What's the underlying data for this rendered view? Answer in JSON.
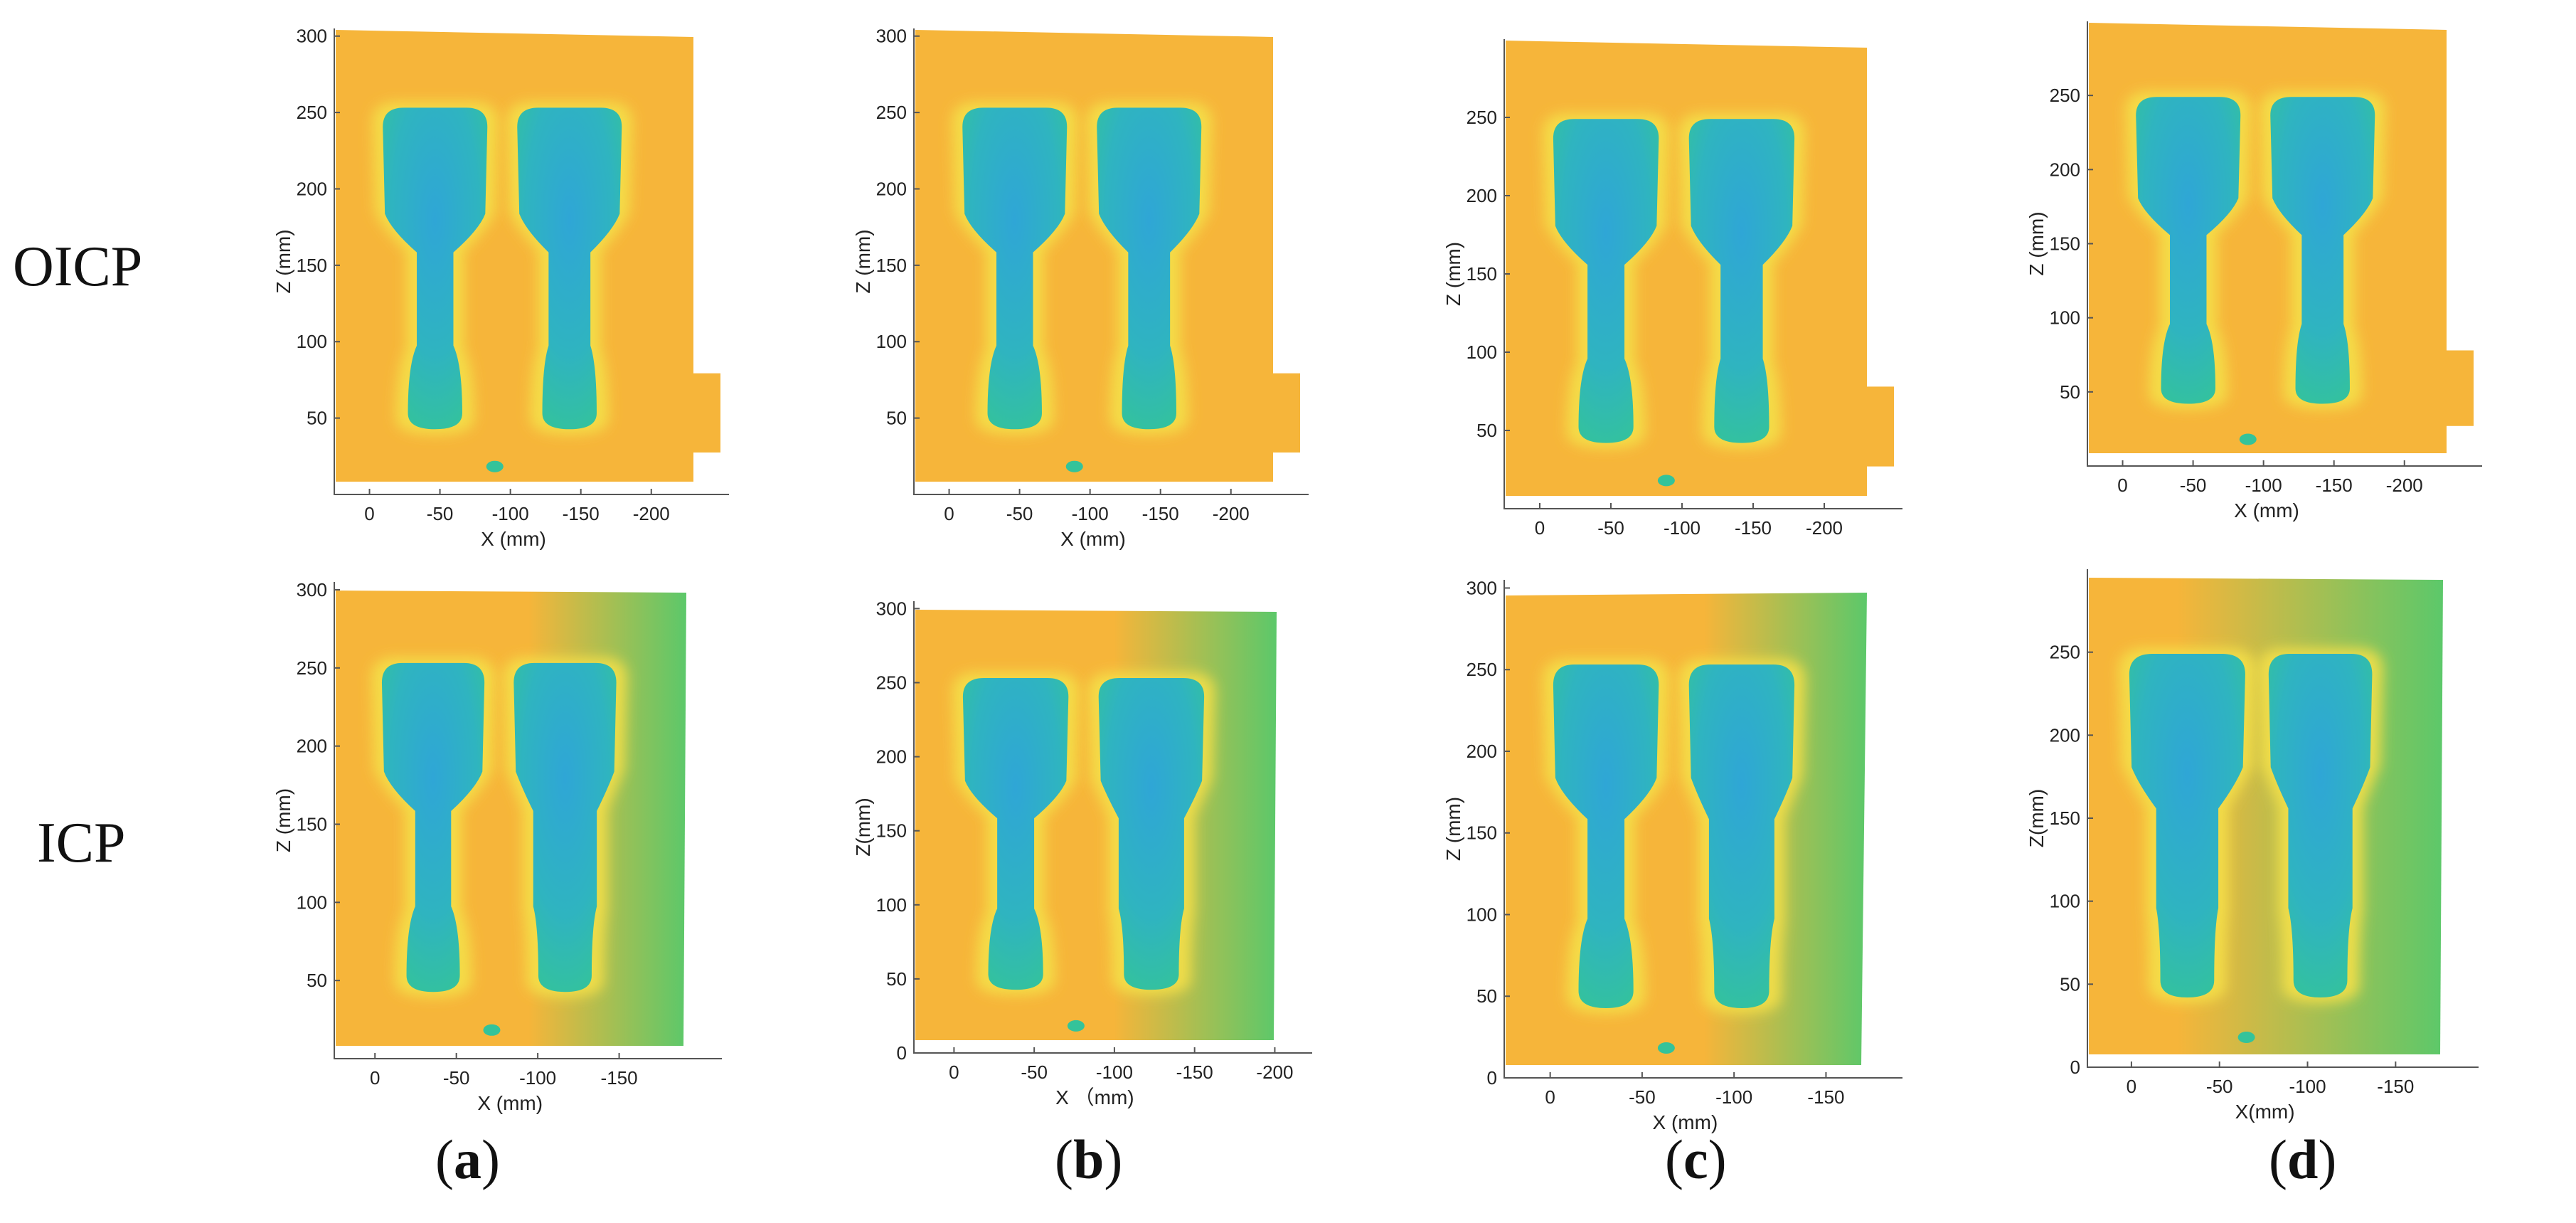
{
  "row_labels": [
    "OICP",
    "ICP"
  ],
  "panel_labels": [
    {
      "open": "(",
      "letter": "a",
      "close": ")"
    },
    {
      "open": "(",
      "letter": "b",
      "close": ")"
    },
    {
      "open": "(",
      "letter": "c",
      "close": ")"
    },
    {
      "open": "(",
      "letter": "d",
      "close": ")"
    }
  ],
  "colors": {
    "background_scan": "#f6b53a",
    "border_glow": "#f4e04a",
    "deep": "#2fa6d6",
    "mid": "#34c39a",
    "green_edge": "#5cc86a",
    "axis": "#555555"
  },
  "chart_data": [
    {
      "type": "heatmap",
      "method": "OICP",
      "panel": "a",
      "xlabel": "X (mm)",
      "ylabel": "Z (mm)",
      "xticks": [
        0,
        -50,
        -100,
        -150,
        -200
      ],
      "yticks": [
        50,
        100,
        150,
        200,
        250,
        300
      ],
      "xlim": [
        25,
        -240
      ],
      "ylim": [
        0,
        305
      ]
    },
    {
      "type": "heatmap",
      "method": "OICP",
      "panel": "b",
      "xlabel": "X (mm)",
      "ylabel": "Z (mm)",
      "xticks": [
        0,
        -50,
        -100,
        -150,
        -200
      ],
      "yticks": [
        50,
        100,
        150,
        200,
        250,
        300
      ],
      "xlim": [
        25,
        -240
      ],
      "ylim": [
        0,
        305
      ]
    },
    {
      "type": "heatmap",
      "method": "OICP",
      "panel": "c",
      "xlabel": "",
      "ylabel": "Z (mm)",
      "xticks": [
        0,
        -50,
        -100,
        -150,
        -200
      ],
      "yticks": [
        50,
        100,
        150,
        200,
        250
      ],
      "xlim": [
        25,
        -240
      ],
      "ylim": [
        0,
        300
      ]
    },
    {
      "type": "heatmap",
      "method": "OICP",
      "panel": "d",
      "xlabel": "X (mm)",
      "ylabel": "Z (mm)",
      "xticks": [
        0,
        -50,
        -100,
        -150,
        -200
      ],
      "yticks": [
        50,
        100,
        150,
        200,
        250
      ],
      "xlim": [
        25,
        -240
      ],
      "ylim": [
        0,
        300
      ]
    },
    {
      "type": "heatmap",
      "method": "ICP",
      "panel": "a",
      "xlabel": "X (mm)",
      "ylabel": "Z (mm)",
      "xticks": [
        0,
        -50,
        -100,
        -150
      ],
      "yticks": [
        50,
        100,
        150,
        200,
        250,
        300
      ],
      "xlim": [
        25,
        -200
      ],
      "ylim": [
        0,
        305
      ]
    },
    {
      "type": "heatmap",
      "method": "ICP",
      "panel": "b",
      "xlabel": "X （mm)",
      "ylabel": "Z(mm)",
      "xticks": [
        0,
        -50,
        -100,
        -150,
        -200
      ],
      "yticks": [
        0,
        50,
        100,
        150,
        200,
        250,
        300
      ],
      "xlim": [
        25,
        -210
      ],
      "ylim": [
        0,
        305
      ]
    },
    {
      "type": "heatmap",
      "method": "ICP",
      "panel": "c",
      "xlabel": "X (mm)",
      "ylabel": "Z (mm)",
      "xticks": [
        0,
        -50,
        -100,
        -150
      ],
      "yticks": [
        0,
        50,
        100,
        150,
        200,
        250,
        300
      ],
      "xlim": [
        25,
        -180
      ],
      "ylim": [
        0,
        305
      ]
    },
    {
      "type": "heatmap",
      "method": "ICP",
      "panel": "d",
      "xlabel": "X(mm)",
      "ylabel": "Z(mm)",
      "xticks": [
        0,
        -50,
        -100,
        -150
      ],
      "yticks": [
        0,
        50,
        100,
        150,
        200,
        250
      ],
      "xlim": [
        25,
        -185
      ],
      "ylim": [
        0,
        300
      ]
    }
  ]
}
